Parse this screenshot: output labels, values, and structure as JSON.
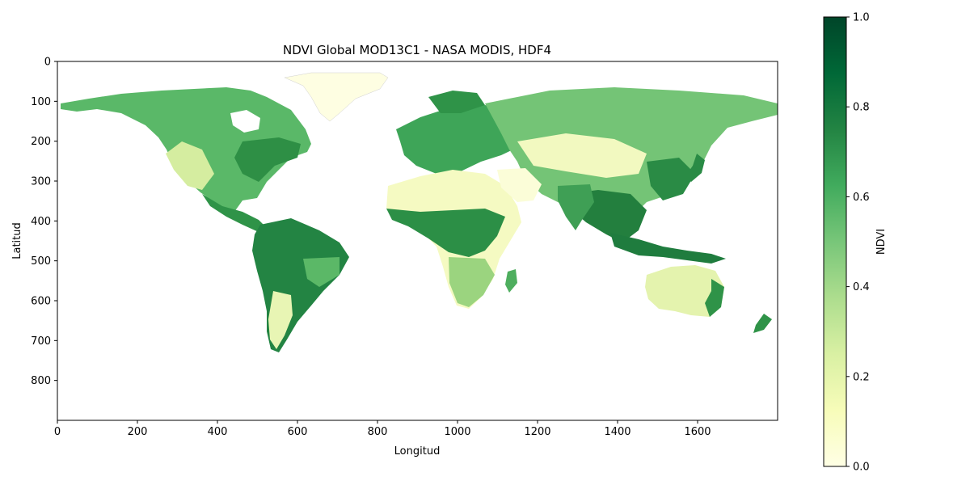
{
  "chart_data": {
    "type": "heatmap",
    "title": "NDVI Global MOD13C1 - NASA MODIS, HDF4",
    "xlabel": "Longitud",
    "ylabel": "Latitud",
    "xlim": [
      0,
      1800
    ],
    "ylim": [
      900,
      0
    ],
    "xticks": [
      0,
      200,
      400,
      600,
      800,
      1000,
      1200,
      1400,
      1600
    ],
    "yticks": [
      0,
      100,
      200,
      300,
      400,
      500,
      600,
      700,
      800
    ],
    "colormap": "YlGn",
    "colorbar": {
      "label": "NDVI",
      "range": [
        0,
        1
      ],
      "ticks": [
        "0.0",
        "0.2",
        "0.4",
        "0.6",
        "0.8",
        "1.0"
      ],
      "colors": [
        "#ffffe5",
        "#f7fcb9",
        "#d9f0a3",
        "#addd8e",
        "#78c679",
        "#41ab5d",
        "#238443",
        "#006837",
        "#004529"
      ]
    }
  }
}
